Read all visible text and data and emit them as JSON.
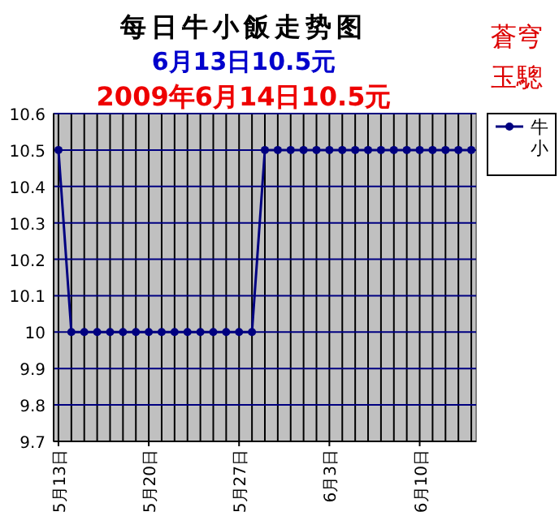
{
  "chart_data": {
    "type": "line",
    "title": "每日牛小飯走势图",
    "subtitle": "6月13日10.5元",
    "annotations": [
      "2009年6月14日10.5元",
      "蒼穹",
      "玉驄"
    ],
    "x": [
      "2009-05-13",
      "2009-05-14",
      "2009-05-15",
      "2009-05-16",
      "2009-05-17",
      "2009-05-18",
      "2009-05-19",
      "2009-05-20",
      "2009-05-21",
      "2009-05-22",
      "2009-05-23",
      "2009-05-24",
      "2009-05-25",
      "2009-05-26",
      "2009-05-27",
      "2009-05-28",
      "2009-05-29",
      "2009-05-30",
      "2009-05-31",
      "2009-06-01",
      "2009-06-02",
      "2009-06-03",
      "2009-06-04",
      "2009-06-05",
      "2009-06-06",
      "2009-06-07",
      "2009-06-08",
      "2009-06-09",
      "2009-06-10",
      "2009-06-11",
      "2009-06-12",
      "2009-06-13",
      "2009-06-14"
    ],
    "series": [
      {
        "name": "牛小",
        "color": "#000080",
        "values": [
          10.5,
          10,
          10,
          10,
          10,
          10,
          10,
          10,
          10,
          10,
          10,
          10,
          10,
          10,
          10,
          10,
          10.5,
          10.5,
          10.5,
          10.5,
          10.5,
          10.5,
          10.5,
          10.5,
          10.5,
          10.5,
          10.5,
          10.5,
          10.5,
          10.5,
          10.5,
          10.5,
          10.5
        ]
      }
    ],
    "xlim": [
      "2009-05-12T15:00",
      "2009-06-14T09:00"
    ],
    "xticks": [
      {
        "value": "2009-05-13",
        "label": "5月13日"
      },
      {
        "value": "2009-05-20",
        "label": "5月20日"
      },
      {
        "value": "2009-05-27",
        "label": "5月27日"
      },
      {
        "value": "2009-06-03",
        "label": "6月3日"
      },
      {
        "value": "2009-06-10",
        "label": "6月10日"
      }
    ],
    "ylim": [
      9.7,
      10.6
    ],
    "yticks": [
      9.7,
      9.8,
      9.9,
      10,
      10.1,
      10.2,
      10.3,
      10.4,
      10.5,
      10.6
    ],
    "grid": true,
    "legend": "right",
    "marker": "circle",
    "line_style": "solid"
  }
}
